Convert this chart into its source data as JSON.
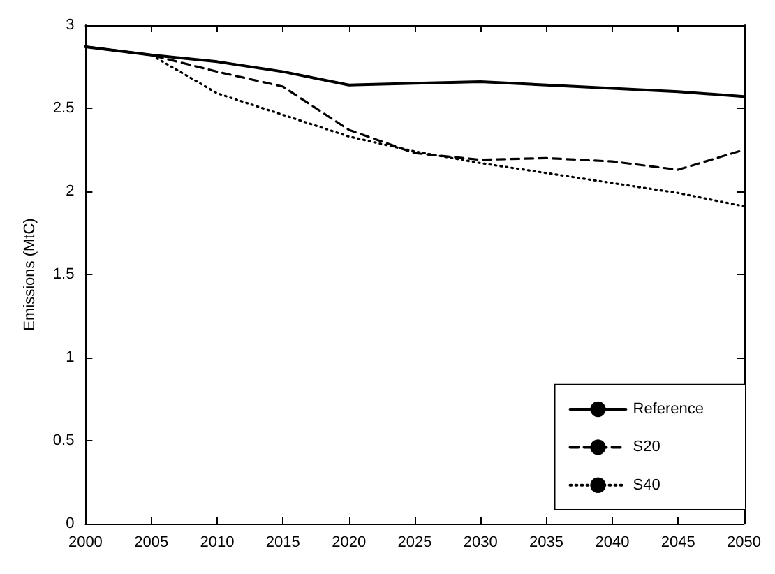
{
  "chart_data": {
    "type": "line",
    "ylabel": "Emissions (MtC)",
    "x": [
      2000,
      2005,
      2010,
      2015,
      2020,
      2025,
      2030,
      2035,
      2040,
      2045,
      2050
    ],
    "series": [
      {
        "name": "Reference",
        "color": "#000000",
        "line_style": "solid",
        "values": [
          2.87,
          2.82,
          2.78,
          2.72,
          2.64,
          2.65,
          2.66,
          2.64,
          2.62,
          2.6,
          2.57
        ]
      },
      {
        "name": "S20",
        "color": "#000000",
        "line_style": "dashed",
        "values": [
          2.87,
          2.82,
          2.72,
          2.63,
          2.37,
          2.23,
          2.19,
          2.2,
          2.18,
          2.13,
          2.25
        ]
      },
      {
        "name": "S40",
        "color": "#000000",
        "line_style": "dotted",
        "values": [
          2.87,
          2.82,
          2.59,
          2.46,
          2.33,
          2.24,
          2.17,
          2.11,
          2.05,
          1.99,
          1.91
        ]
      }
    ],
    "xlim": [
      2000,
      2050
    ],
    "xticks": [
      2000,
      2005,
      2010,
      2015,
      2020,
      2025,
      2030,
      2035,
      2040,
      2045,
      2050
    ],
    "ylim": [
      0,
      3
    ],
    "yticks": [
      0,
      0.5,
      1,
      1.5,
      2,
      2.5,
      3
    ],
    "grid": false,
    "legend": "bottom right",
    "marker": "none"
  }
}
